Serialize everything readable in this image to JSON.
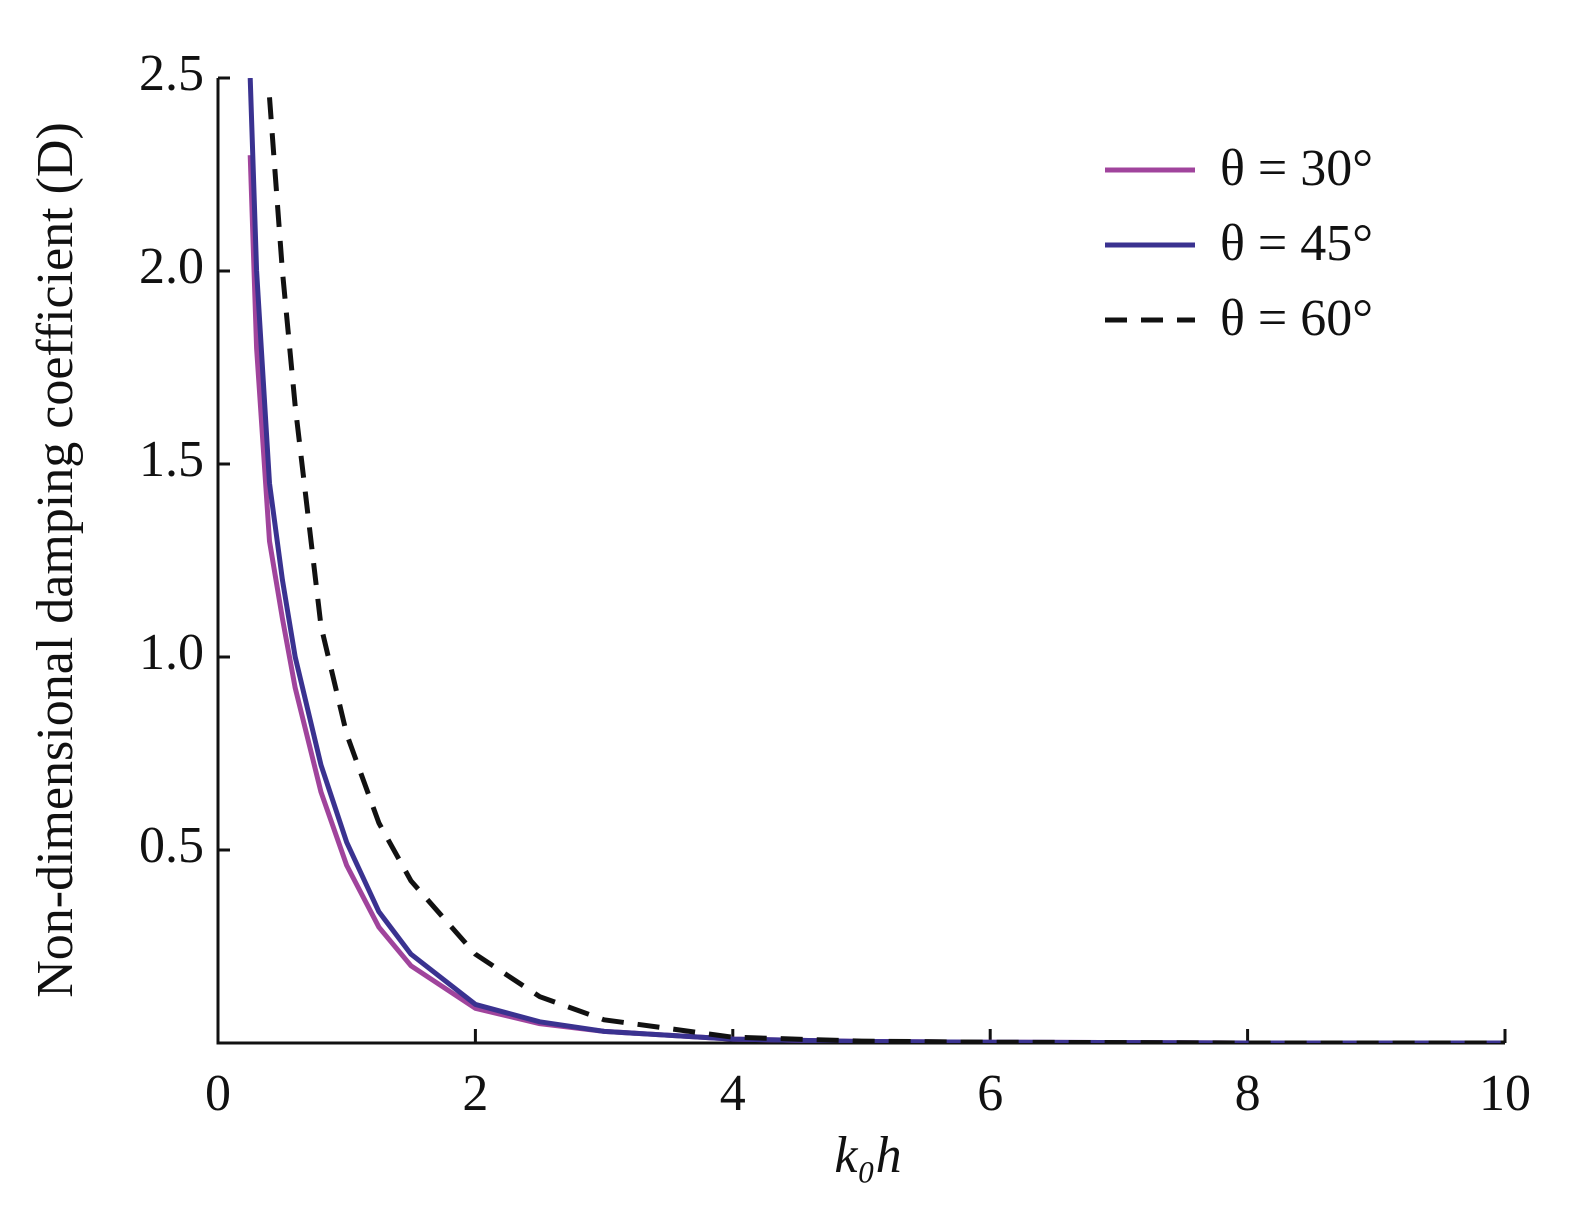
{
  "chart_data": {
    "type": "line",
    "x_label": "k₀h",
    "y_label": "Non-dimensional damping coefficient (D)",
    "x": [
      0.25,
      0.3,
      0.4,
      0.5,
      0.6,
      0.8,
      1.0,
      1.25,
      1.5,
      2,
      2.5,
      3,
      4,
      5,
      6,
      8,
      10
    ],
    "series": [
      {
        "name": "θ = 30°",
        "color": "#a0449c",
        "dashed": false,
        "values": [
          2.3,
          1.8,
          1.3,
          1.1,
          0.92,
          0.65,
          0.46,
          0.3,
          0.2,
          0.09,
          0.05,
          0.03,
          0.01,
          0.004,
          0.002,
          0,
          0
        ]
      },
      {
        "name": "θ = 45°",
        "color": "#3a3290",
        "dashed": false,
        "values": [
          2.5,
          2.0,
          1.45,
          1.2,
          1.0,
          0.72,
          0.52,
          0.34,
          0.23,
          0.1,
          0.055,
          0.03,
          0.01,
          0.004,
          0.002,
          0,
          0
        ]
      },
      {
        "name": "θ = 60°",
        "color": "#111111",
        "dashed": true,
        "values": [
          null,
          null,
          2.45,
          2.0,
          1.65,
          1.08,
          0.8,
          0.57,
          0.42,
          0.23,
          0.12,
          0.06,
          0.015,
          0.005,
          0.002,
          0,
          0
        ]
      }
    ],
    "xlim": [
      0,
      10
    ],
    "xticks": [
      0,
      2,
      4,
      6,
      8,
      10
    ],
    "ylim": [
      0,
      2.5
    ],
    "yticks": [
      0.5,
      {
        "value": 1.0,
        "label": "1.0"
      },
      1.5,
      {
        "value": 2.0,
        "label": "2.0"
      },
      2.5
    ],
    "legend": "upper right",
    "grid": false
  }
}
